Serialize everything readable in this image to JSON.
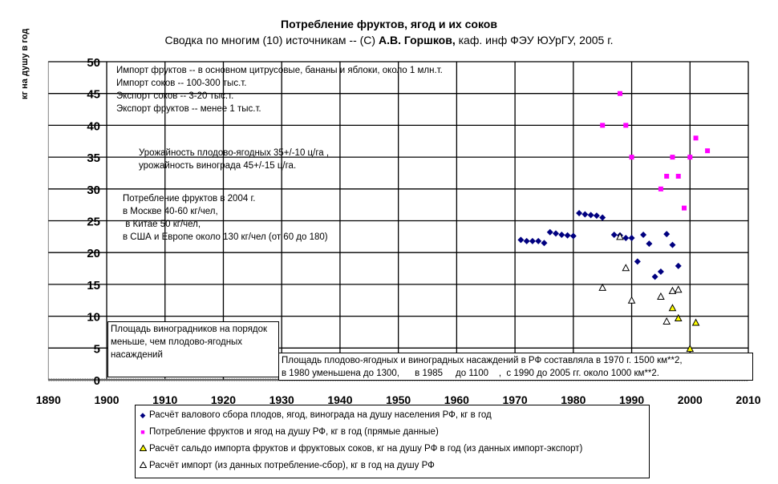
{
  "chart_data": {
    "type": "scatter",
    "title": "Потребление фруктов, ягод и их соков",
    "subtitle_parts": [
      "Сводка по многим (10) источникам -- (С) ",
      "А.В. Горшков,",
      " каф. инф ФЭУ ЮУрГУ, 2005 г."
    ],
    "ylabel": "кг на душу в год",
    "xlabel": "",
    "xlim": [
      1890,
      2010
    ],
    "ylim": [
      0,
      50
    ],
    "x_ticks": [
      1890,
      1900,
      1910,
      1920,
      1930,
      1940,
      1950,
      1960,
      1970,
      1980,
      1990,
      2000,
      2010
    ],
    "y_ticks": [
      0,
      5,
      10,
      15,
      20,
      25,
      30,
      35,
      40,
      45,
      50
    ],
    "grid": true,
    "legend_position": "bottom",
    "series": [
      {
        "name": "Расчёт валового сбора плодов, ягод, винограда на душу населения РФ, кг в год",
        "marker": "diamond",
        "color": "#000080",
        "points": [
          [
            1971,
            22
          ],
          [
            1972,
            21.8
          ],
          [
            1973,
            21.8
          ],
          [
            1974,
            21.8
          ],
          [
            1975,
            21.5
          ],
          [
            1976,
            23.2
          ],
          [
            1977,
            23
          ],
          [
            1978,
            22.8
          ],
          [
            1979,
            22.7
          ],
          [
            1980,
            22.6
          ],
          [
            1981,
            26.2
          ],
          [
            1982,
            26
          ],
          [
            1983,
            25.9
          ],
          [
            1984,
            25.8
          ],
          [
            1985,
            25.5
          ],
          [
            1987,
            22.8
          ],
          [
            1988,
            22.7
          ],
          [
            1989,
            22.3
          ],
          [
            1990,
            22.3
          ],
          [
            1991,
            18.6
          ],
          [
            1992,
            22.8
          ],
          [
            1993,
            21.4
          ],
          [
            1994,
            16.2
          ],
          [
            1995,
            17
          ],
          [
            1996,
            22.9
          ],
          [
            1997,
            21.2
          ],
          [
            1998,
            17.9
          ]
        ]
      },
      {
        "name": "Потребление фруктов и ягод на душу РФ, кг в год (прямые данные)",
        "marker": "square",
        "color": "#FF00FF",
        "points": [
          [
            1985,
            40
          ],
          [
            1988,
            45
          ],
          [
            1989,
            40
          ],
          [
            1990,
            35
          ],
          [
            1995,
            30
          ],
          [
            1996,
            32
          ],
          [
            1997,
            35
          ],
          [
            1998,
            32
          ],
          [
            1999,
            27
          ],
          [
            2000,
            35
          ],
          [
            2001,
            38
          ],
          [
            2003,
            36
          ]
        ]
      },
      {
        "name": "Расчёт сальдо импорта фруктов и фруктовых соков, кг на душу РФ в год (из данных импорт-экспорт)",
        "marker": "triangle",
        "color": "#FFFF00",
        "points": [
          [
            1997,
            11.3
          ],
          [
            1998,
            9.7
          ],
          [
            2000,
            4.9
          ],
          [
            2001,
            9
          ]
        ]
      },
      {
        "name": "Расчёт импорт (из данных потребление-сбор), кг в год на душу РФ",
        "marker": "triangle",
        "color": "#FFFFFF",
        "points": [
          [
            1985,
            14.5
          ],
          [
            1988,
            22.5
          ],
          [
            1989,
            17.6
          ],
          [
            1990,
            12.5
          ],
          [
            1995,
            13.1
          ],
          [
            1996,
            9.2
          ],
          [
            1997,
            14
          ],
          [
            1998,
            14.2
          ]
        ]
      }
    ],
    "annotations": {
      "import_export": [
        "Импорт фруктов -- в основном цитрусовые, бананы и яблоки, около 1 млн.т.",
        "Импорт соков -- 100-300 тыс.т.",
        "Экспорт соков -- 3-20 тыс.т.",
        "Экспорт фруктов -- менее 1 тыс.т."
      ],
      "yield": [
        "Урожайность плодово-ягодных 35+/-10  ц/га ,",
        "урожайность винограда 45+/-15  ц/га."
      ],
      "consumption_2004": [
        "Потребление фруктов в 2004 г.",
        "в Москве 40-60 кг/чел,",
        " в Китае 50 кг/чел,",
        "в США и Европе около 130 кг/чел (от 60 до 180)"
      ],
      "vineyards": "Площадь виноградников на порядок меньше, чем плодово-ягодных насаждений",
      "area": [
        "Площадь плодово-ягодных и виноградных насаждений в РФ составляла в 1970 г. 1500 км**2,",
        "в 1980 уменьшена до 1300,      в 1985     до 1100    ,  с 1990 до 2005 гг. около 1000 км**2."
      ]
    }
  }
}
